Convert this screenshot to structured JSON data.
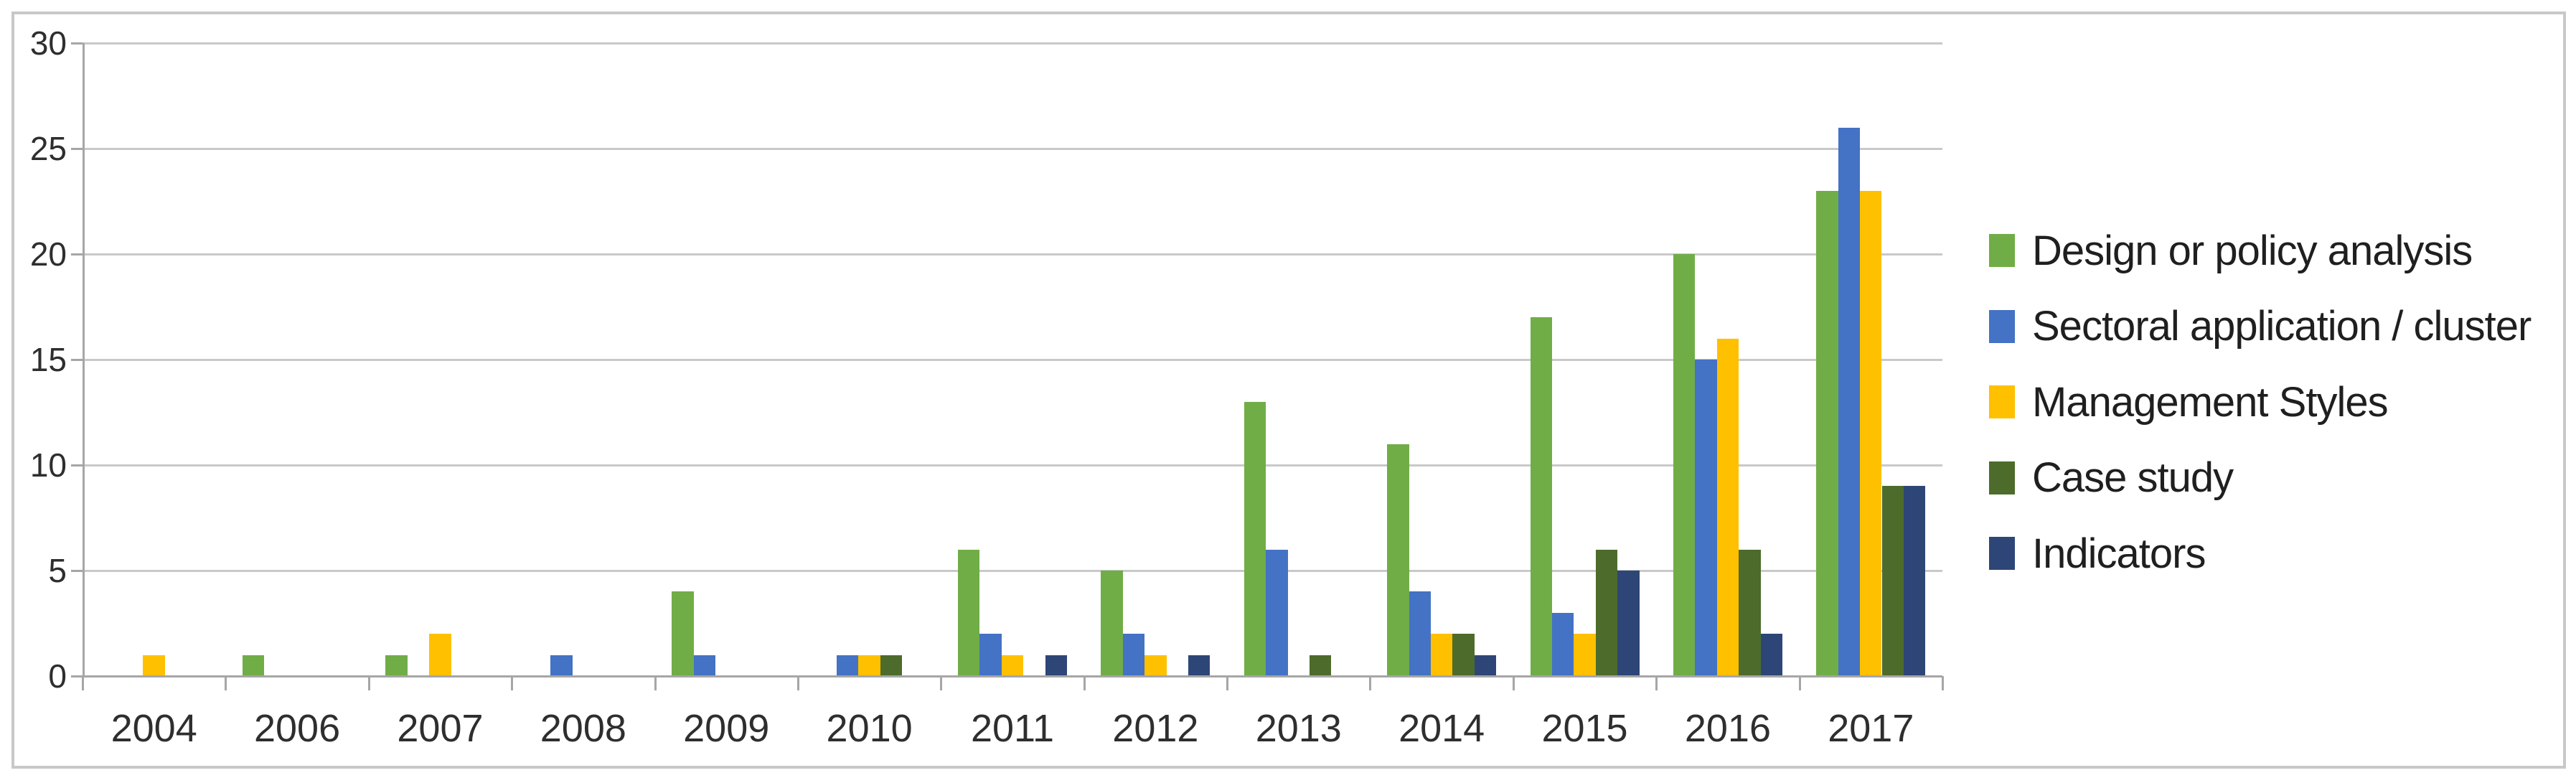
{
  "chart_data": {
    "type": "bar",
    "title": "",
    "xlabel": "",
    "ylabel": "",
    "categories": [
      "2004",
      "2006",
      "2007",
      "2008",
      "2009",
      "2010",
      "2011",
      "2012",
      "2013",
      "2014",
      "2015",
      "2016",
      "2017"
    ],
    "series": [
      {
        "name": "Design or policy analysis",
        "color": "#70AD47",
        "values": [
          0,
          1,
          1,
          0,
          4,
          0,
          6,
          5,
          13,
          11,
          17,
          20,
          23
        ]
      },
      {
        "name": "Sectoral application / cluster",
        "color": "#4472C4",
        "values": [
          0,
          0,
          0,
          1,
          1,
          1,
          2,
          2,
          6,
          4,
          3,
          15,
          26
        ]
      },
      {
        "name": "Management Styles",
        "color": "#FFC000",
        "values": [
          1,
          0,
          2,
          0,
          0,
          1,
          1,
          1,
          0,
          2,
          2,
          16,
          23
        ]
      },
      {
        "name": "Case study",
        "color": "#4D6B2B",
        "values": [
          0,
          0,
          0,
          0,
          0,
          1,
          0,
          0,
          1,
          2,
          6,
          6,
          9
        ]
      },
      {
        "name": "Indicators",
        "color": "#2E4677",
        "values": [
          0,
          0,
          0,
          0,
          0,
          0,
          1,
          1,
          0,
          1,
          5,
          2,
          9
        ]
      }
    ],
    "ylim": [
      0,
      30
    ],
    "ytick_step": 5,
    "ytick_labels": [
      "0",
      "5",
      "10",
      "15",
      "20",
      "25",
      "30"
    ],
    "grid": true,
    "legend_position": "right"
  },
  "style": {
    "axis_color": "#A6A6A6",
    "gridline_color": "#C9C9C9",
    "text_color": "#2E2E2E",
    "frame_border_color": "#C8C8C8",
    "background": "#FFFFFF"
  }
}
